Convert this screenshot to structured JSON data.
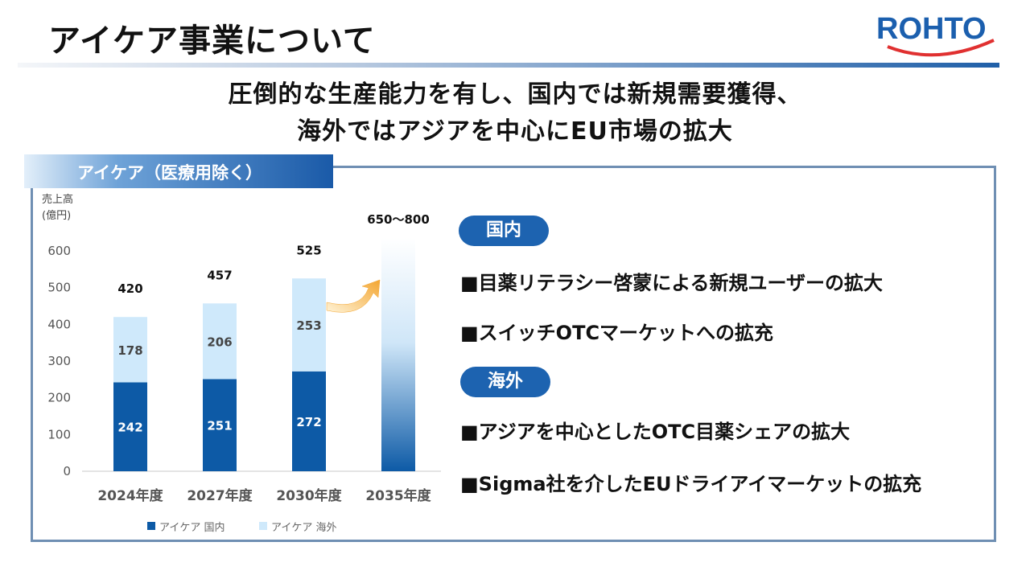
{
  "header": {
    "title": "アイケア事業について",
    "logo_text": "ROHTO"
  },
  "headline": {
    "line1": "圧倒的な生産能力を有し、国内では新規需要獲得、",
    "line2": "海外ではアジアを中心にEU市場の拡大"
  },
  "panel": {
    "tab_label": "アイケア（医療用除く）"
  },
  "domestic": {
    "label": "国内",
    "bullets": [
      "■目薬リテラシー啓蒙による新規ユーザーの拡大",
      "■スイッチOTCマーケットへの拡充"
    ]
  },
  "overseas": {
    "label": "海外",
    "bullets": [
      "■アジアを中心としたOTC目薬シェアの拡大",
      "■Sigma社を介したEUドライアイマーケットの拡充"
    ]
  },
  "colors": {
    "domestic": "#0d5aa6",
    "overseas": "#cfe9fb",
    "accent": "#1d63b0",
    "arrow": "#f3a530"
  },
  "chart_data": {
    "type": "bar",
    "stacked": true,
    "ylabel": "売上高",
    "ylabel_unit": "(億円)",
    "ylim": [
      0,
      600
    ],
    "yticks": [
      0,
      100,
      200,
      300,
      400,
      500,
      600
    ],
    "categories": [
      "2024年度",
      "2027年度",
      "2030年度",
      "2035年度"
    ],
    "series": [
      {
        "name": "アイケア 国内",
        "values": [
          242,
          251,
          272,
          null
        ]
      },
      {
        "name": "アイケア 海外",
        "values": [
          178,
          206,
          253,
          null
        ]
      }
    ],
    "totals": [
      420,
      457,
      525,
      null
    ],
    "target_range": {
      "category": "2035年度",
      "low": 650,
      "high": 800,
      "label": "650～800"
    },
    "legend": "bottom",
    "grid": false
  }
}
